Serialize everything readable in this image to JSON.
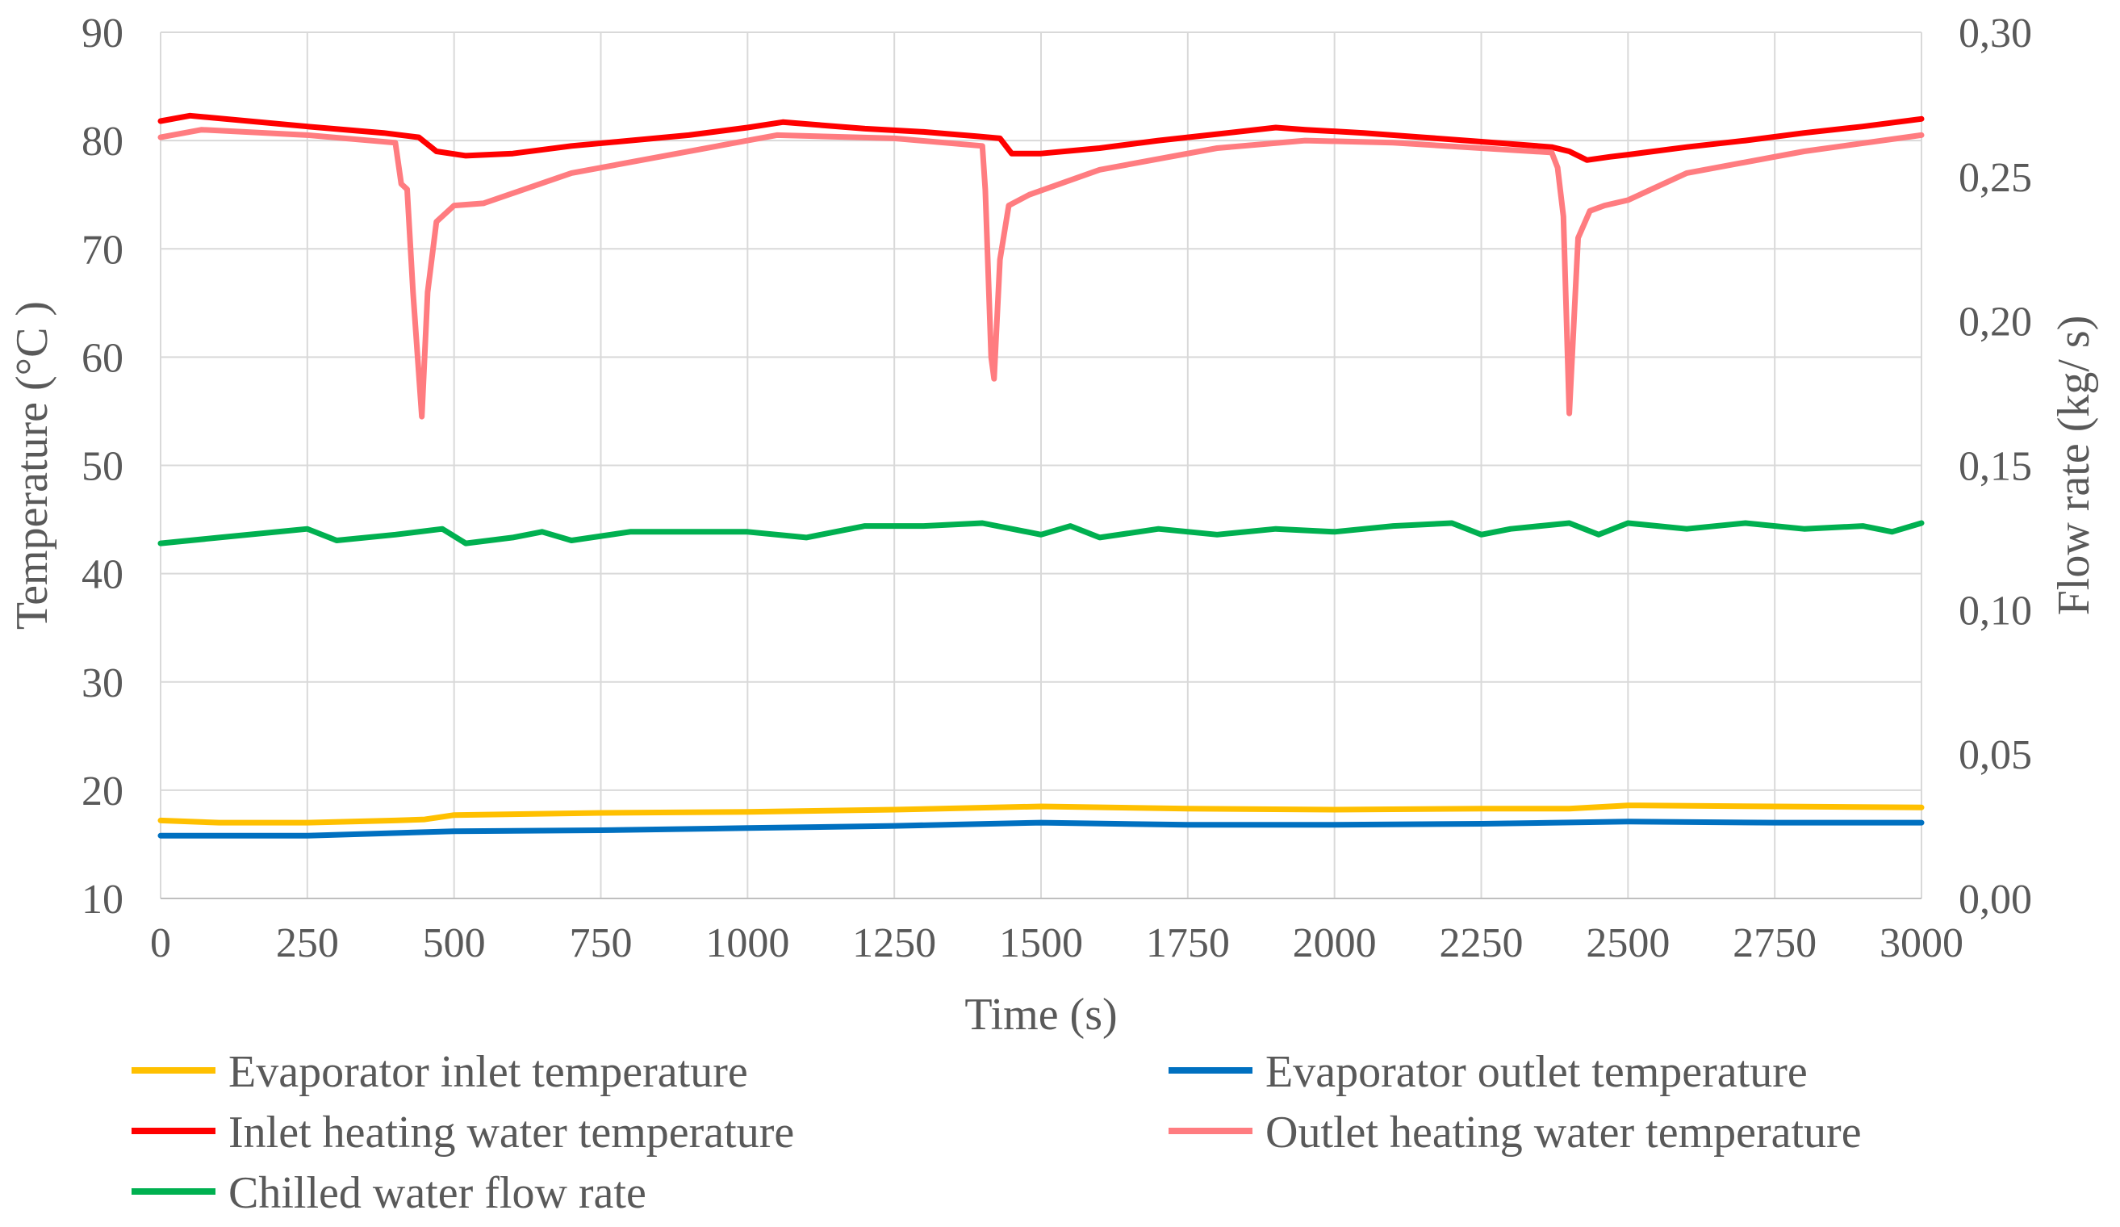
{
  "chart_data": {
    "type": "line",
    "title": "",
    "xlabel": "Time  (s)",
    "ylabel": "Temperature  (°C )",
    "y2label": "Flow rate (kg/ s)",
    "xlim": [
      0,
      3000
    ],
    "ylim": [
      10,
      90
    ],
    "y2lim": [
      0,
      0.3
    ],
    "xticks": [
      0,
      250,
      500,
      750,
      1000,
      1250,
      1500,
      1750,
      2000,
      2250,
      2500,
      2750,
      3000
    ],
    "yticks": [
      10,
      20,
      30,
      40,
      50,
      60,
      70,
      80,
      90
    ],
    "y2ticks": [
      0,
      0.05,
      0.1,
      0.15,
      0.2,
      0.25,
      0.3
    ],
    "y2tick_labels": [
      "0,00",
      "0,05",
      "0,10",
      "0,15",
      "0,20",
      "0,25",
      "0,30"
    ],
    "grid": true,
    "legend_position": "bottom",
    "series": [
      {
        "name": "Evaporator inlet temperature",
        "color": "#ffc000",
        "axis": "left",
        "x": [
          0,
          100,
          250,
          400,
          450,
          500,
          750,
          1000,
          1250,
          1500,
          1750,
          2000,
          2250,
          2400,
          2500,
          2750,
          3000
        ],
        "y": [
          17.2,
          17.0,
          17.0,
          17.2,
          17.3,
          17.7,
          17.9,
          18.0,
          18.2,
          18.5,
          18.3,
          18.2,
          18.3,
          18.3,
          18.6,
          18.5,
          18.4
        ]
      },
      {
        "name": "Evaporator outlet temperature",
        "color": "#0070c0",
        "axis": "left",
        "x": [
          0,
          250,
          500,
          750,
          1000,
          1250,
          1500,
          1750,
          2000,
          2250,
          2500,
          2750,
          3000
        ],
        "y": [
          15.8,
          15.8,
          16.2,
          16.3,
          16.5,
          16.7,
          17.0,
          16.8,
          16.8,
          16.9,
          17.1,
          17.0,
          17.0
        ]
      },
      {
        "name": "Inlet heating water temperature",
        "color": "#ff0000",
        "axis": "left",
        "x": [
          0,
          50,
          250,
          380,
          440,
          470,
          520,
          600,
          700,
          800,
          900,
          1000,
          1060,
          1200,
          1300,
          1390,
          1430,
          1450,
          1500,
          1600,
          1700,
          1800,
          1900,
          1950,
          2050,
          2150,
          2250,
          2370,
          2400,
          2430,
          2470,
          2500,
          2600,
          2700,
          2800,
          2900,
          3000
        ],
        "y": [
          81.8,
          82.3,
          81.3,
          80.7,
          80.3,
          79.0,
          78.6,
          78.8,
          79.5,
          80.0,
          80.5,
          81.2,
          81.7,
          81.1,
          80.8,
          80.4,
          80.2,
          78.8,
          78.8,
          79.3,
          80.0,
          80.6,
          81.2,
          81.0,
          80.7,
          80.3,
          79.9,
          79.4,
          79.0,
          78.2,
          78.5,
          78.7,
          79.4,
          80.0,
          80.7,
          81.3,
          82.0
        ]
      },
      {
        "name": "Outlet heating water temperature",
        "color": "#ff7c80",
        "axis": "left",
        "x": [
          0,
          70,
          250,
          400,
          410,
          420,
          430,
          445,
          455,
          470,
          500,
          550,
          700,
          1000,
          1050,
          1250,
          1400,
          1405,
          1415,
          1420,
          1430,
          1445,
          1480,
          1600,
          1800,
          1950,
          2100,
          2370,
          2380,
          2390,
          2400,
          2415,
          2435,
          2460,
          2500,
          2600,
          2800,
          3000
        ],
        "y": [
          80.3,
          81.0,
          80.5,
          79.8,
          76.0,
          75.5,
          66.0,
          54.5,
          66.0,
          72.5,
          74.0,
          74.2,
          77.0,
          80.0,
          80.5,
          80.2,
          79.5,
          75.5,
          60.0,
          58.0,
          69.0,
          74.0,
          75.0,
          77.3,
          79.3,
          80.0,
          79.8,
          78.9,
          77.5,
          73.0,
          54.8,
          71.0,
          73.5,
          74.0,
          74.5,
          77.0,
          79.0,
          80.5
        ]
      },
      {
        "name": "Chilled water flow rate",
        "color": "#00b050",
        "axis": "right",
        "x": [
          0,
          100,
          250,
          300,
          400,
          480,
          520,
          600,
          650,
          700,
          800,
          1000,
          1100,
          1200,
          1300,
          1400,
          1500,
          1550,
          1600,
          1700,
          1800,
          1900,
          2000,
          2100,
          2200,
          2250,
          2300,
          2400,
          2450,
          2500,
          2600,
          2700,
          2800,
          2900,
          2950,
          3000
        ],
        "y": [
          0.123,
          0.125,
          0.128,
          0.124,
          0.126,
          0.128,
          0.123,
          0.125,
          0.127,
          0.124,
          0.127,
          0.127,
          0.125,
          0.129,
          0.129,
          0.13,
          0.126,
          0.129,
          0.125,
          0.128,
          0.126,
          0.128,
          0.127,
          0.129,
          0.13,
          0.126,
          0.128,
          0.13,
          0.126,
          0.13,
          0.128,
          0.13,
          0.128,
          0.129,
          0.127,
          0.13
        ]
      }
    ]
  }
}
